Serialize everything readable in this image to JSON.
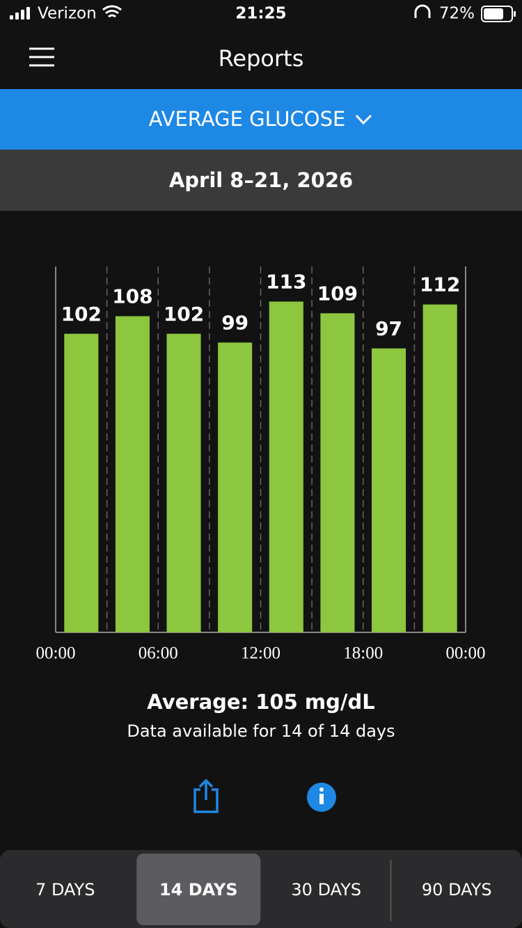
{
  "status_bar": {
    "carrier": "Verizon",
    "time": "21:25",
    "battery": "72%"
  },
  "header": {
    "title": "Reports"
  },
  "report_selector": {
    "label": "AVERAGE GLUCOSE"
  },
  "date_range": "April 8–21, 2026",
  "chart_data": {
    "type": "bar",
    "x": [
      1.5,
      4.5,
      7.5,
      10.5,
      13.5,
      16.5,
      19.5,
      22.5
    ],
    "values": [
      102,
      108,
      102,
      99,
      113,
      109,
      97,
      112
    ],
    "color": "#8dc63f",
    "xlim": [
      0,
      24
    ],
    "xticks": [
      {
        "value": 0,
        "label": "00:00"
      },
      {
        "value": 6,
        "label": "06:00"
      },
      {
        "value": 12,
        "label": "12:00"
      },
      {
        "value": 18,
        "label": "18:00"
      },
      {
        "value": 24,
        "label": "00:00"
      }
    ],
    "ylim": [
      0,
      125
    ]
  },
  "summary": {
    "average": "Average: 105 mg/dL",
    "availability": "Data available for 14 of 14 days"
  },
  "tabs": {
    "items": [
      "7 DAYS",
      "14 DAYS",
      "30 DAYS",
      "90 DAYS"
    ],
    "selected": 1
  }
}
